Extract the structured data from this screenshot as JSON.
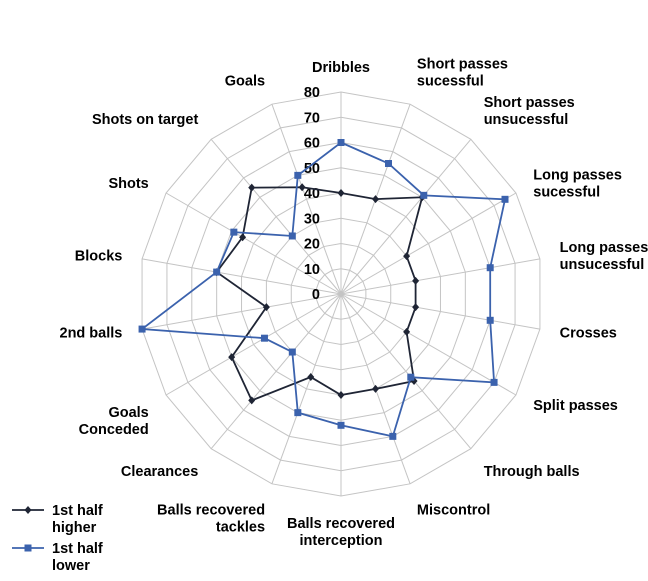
{
  "chart_data": {
    "type": "radar",
    "title": "",
    "categories": [
      "Dribbles",
      "Short passes sucessful",
      "Short passes unsucessful",
      "Long passes sucessful",
      "Long passes unsucessful",
      "Crosses",
      "Split passes",
      "Through balls",
      "Miscontrol",
      "Balls recovered interception",
      "Balls recovered tackles",
      "Clearances",
      "Goals Conceded",
      "2nd balls",
      "Blocks",
      "Shots",
      "Shots on target",
      "Goals"
    ],
    "category_lines": [
      [
        "Dribbles"
      ],
      [
        "Short passes",
        "sucessful"
      ],
      [
        "Short passes",
        "unsucessful"
      ],
      [
        "Long passes",
        "sucessful"
      ],
      [
        "Long passes",
        "unsucessful"
      ],
      [
        "Crosses"
      ],
      [
        "Split passes"
      ],
      [
        "Through balls"
      ],
      [
        "Miscontrol"
      ],
      [
        "Balls recovered",
        "interception"
      ],
      [
        "Balls recovered",
        "tackles"
      ],
      [
        "Clearances"
      ],
      [
        "Goals",
        "Conceded"
      ],
      [
        "2nd balls"
      ],
      [
        "Blocks"
      ],
      [
        "Shots"
      ],
      [
        "Shots on target"
      ],
      [
        "Goals"
      ]
    ],
    "rlim": [
      0,
      80
    ],
    "ticks": [
      "0",
      "10",
      "20",
      "30",
      "40",
      "50",
      "60",
      "70",
      "80"
    ],
    "grid": true,
    "legend_position": "bottom-left",
    "series": [
      {
        "name": "1st half higher",
        "legend_lines": [
          "1st half",
          "higher"
        ],
        "color": "#1f2535",
        "marker": "diamond",
        "values": [
          40,
          40,
          50,
          30,
          30,
          30,
          30,
          45,
          40,
          40,
          35,
          55,
          50,
          30,
          50,
          45,
          55,
          45
        ]
      },
      {
        "name": "1st half lower",
        "legend_lines": [
          "1st half",
          "lower"
        ],
        "color": "#3b62ad",
        "marker": "square",
        "values": [
          60,
          55,
          51,
          75,
          60,
          60,
          70,
          43,
          60,
          52,
          50,
          30,
          35,
          80,
          50,
          49,
          30,
          50
        ]
      }
    ]
  }
}
